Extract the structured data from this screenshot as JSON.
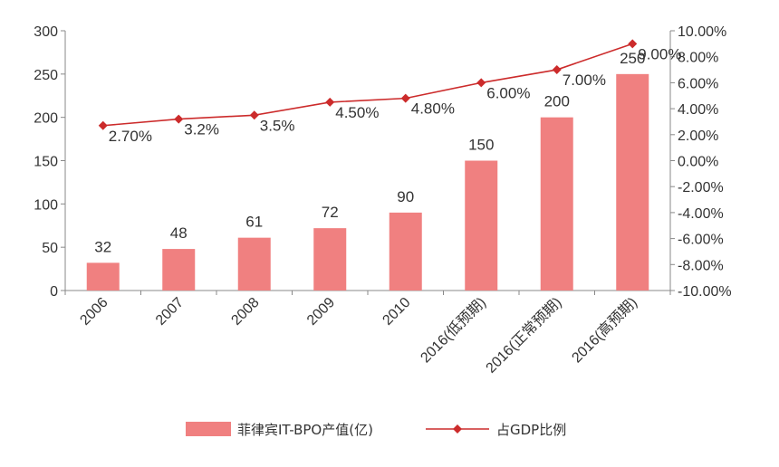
{
  "chart_data": {
    "type": "bar",
    "title": "",
    "categories": [
      "2006",
      "2007",
      "2008",
      "2009",
      "2010",
      "2016(低预期)",
      "2016(正常预期)",
      "2016(高预期)"
    ],
    "series": [
      {
        "name": "菲律宾IT-BPO产值(亿)",
        "type": "bar",
        "axis": "left",
        "color": "#f08080",
        "values": [
          32,
          48,
          61,
          72,
          90,
          150,
          200,
          250
        ],
        "labels": [
          "32",
          "48",
          "61",
          "72",
          "90",
          "150",
          "200",
          "250"
        ]
      },
      {
        "name": "占GDP比例",
        "type": "line",
        "axis": "right",
        "color": "#cc2b2b",
        "values": [
          2.7,
          3.2,
          3.5,
          4.5,
          4.8,
          6.0,
          7.0,
          9.0
        ],
        "labels": [
          "2.70%",
          "3.2%",
          "3.5%",
          "4.50%",
          "4.80%",
          "6.00%",
          "7.00%",
          "9.00%"
        ]
      }
    ],
    "y_left": {
      "min": 0,
      "max": 300,
      "ticks": [
        "0",
        "50",
        "100",
        "150",
        "200",
        "250",
        "300"
      ]
    },
    "y_right": {
      "min": -10,
      "max": 10,
      "ticks": [
        "-10.00%",
        "-8.00%",
        "-6.00%",
        "-4.00%",
        "-2.00%",
        "0.00%",
        "2.00%",
        "4.00%",
        "6.00%",
        "8.00%",
        "10.00%"
      ]
    },
    "grid": false,
    "legend": "bottom"
  }
}
